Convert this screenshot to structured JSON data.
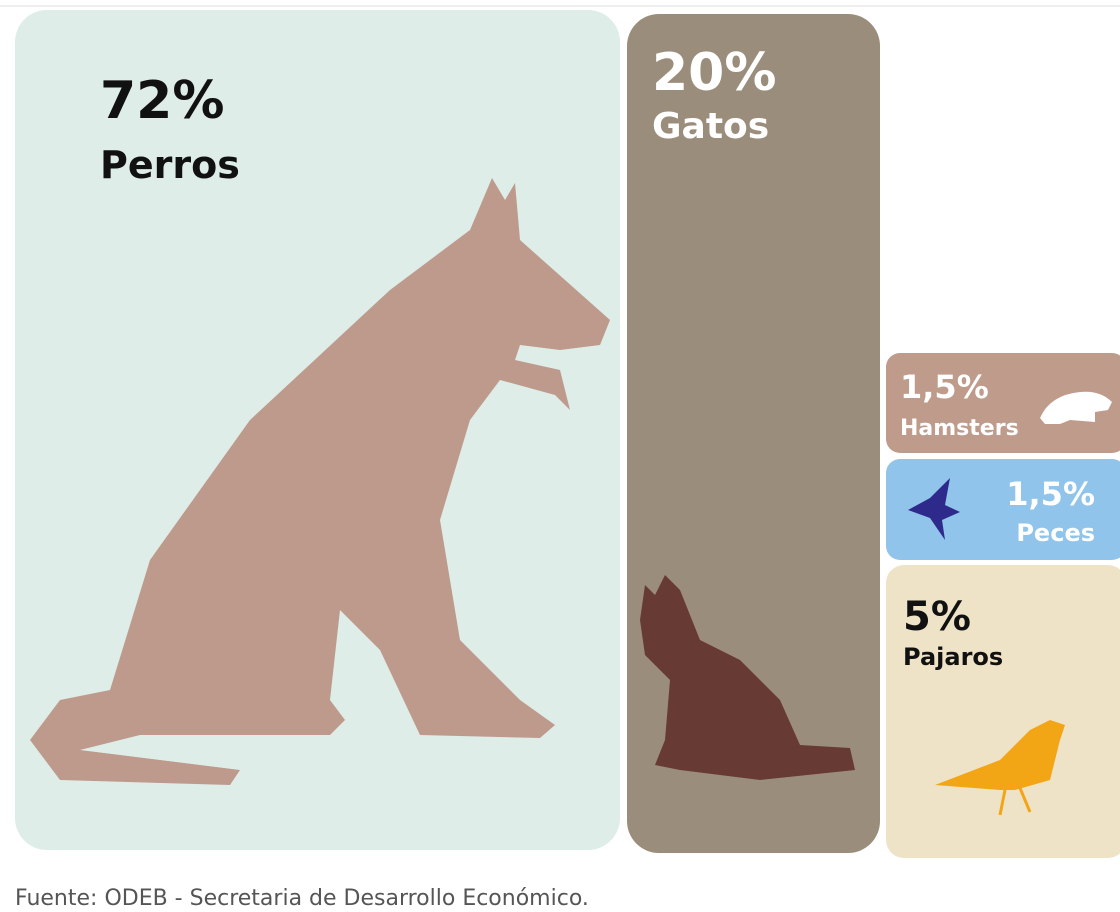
{
  "tiles": [
    {
      "value_label": "72%",
      "name": "Perros"
    },
    {
      "value_label": "20%",
      "name": "Gatos"
    },
    {
      "value_label": "1,5%",
      "name": "Hamsters"
    },
    {
      "value_label": "1,5%",
      "name": "Peces"
    },
    {
      "value_label": "5%",
      "name": "Pajaros"
    }
  ],
  "source": "Fuente: ODEB - Secretaria de Desarrollo Económico."
}
